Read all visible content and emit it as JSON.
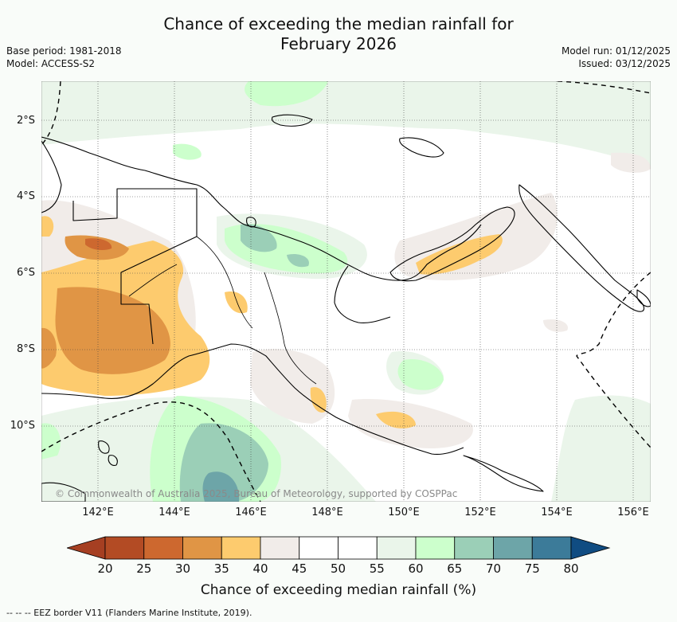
{
  "header": {
    "title_line1": "Chance of exceeding the median rainfall for",
    "title_line2": "February 2026",
    "base_period": "Base period: 1981-2018",
    "model": "Model: ACCESS-S2",
    "model_run": "Model run: 01/12/2025",
    "issued": "Issued: 03/12/2025"
  },
  "map": {
    "lat_labels": [
      "2°S",
      "4°S",
      "6°S",
      "8°S",
      "10°S"
    ],
    "lon_labels": [
      "142°E",
      "144°E",
      "146°E",
      "148°E",
      "150°E",
      "152°E",
      "154°E",
      "156°E"
    ],
    "copyright": "© Commonwealth of Australia 2025, Bureau of Meteorology, supported by COSPPac"
  },
  "colorbar": {
    "labels": [
      "20",
      "25",
      "30",
      "35",
      "40",
      "45",
      "50",
      "55",
      "60",
      "65",
      "70",
      "75",
      "80"
    ],
    "colors": [
      "#a63f22",
      "#b34b24",
      "#cd682f",
      "#e09545",
      "#fdcb6e",
      "#f1ece9",
      "#ffffff",
      "#ffffff",
      "#eaf5ea",
      "#ccffcc",
      "#9bcfb7",
      "#6da5a8",
      "#3c7b99",
      "#104c82"
    ],
    "title": "Chance of exceeding median rainfall (%)"
  },
  "legend_note": "--  --  -- EEZ border V11 (Flanders Marine Institute, 2019)."
}
